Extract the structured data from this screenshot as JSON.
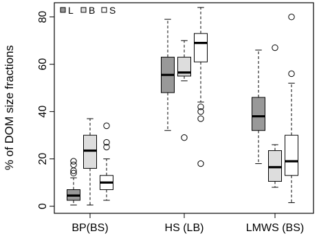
{
  "chart_data": {
    "type": "boxplot",
    "title": "",
    "xlabel": "",
    "ylabel": "% of DOM size fractions",
    "ylim": [
      -3,
      86
    ],
    "yticks": [
      0,
      20,
      40,
      60,
      80
    ],
    "categories": [
      "BP(BS)",
      "HS (LB)",
      "LMWS (BS)"
    ],
    "legend": {
      "placement": "top-left",
      "entries": [
        {
          "label": "L",
          "fill": "#999999"
        },
        {
          "label": "B",
          "fill": "#dddddd"
        },
        {
          "label": "S",
          "fill": "#ffffff"
        }
      ]
    },
    "series": [
      {
        "name": "L",
        "fill": "#999999",
        "boxes": [
          {
            "whisker_low": 0.5,
            "q1": 2.5,
            "median": 4.5,
            "q3": 7,
            "whisker_high": 12,
            "outliers": [
              14,
              15,
              17.5,
              19
            ]
          },
          {
            "whisker_low": 32,
            "q1": 48,
            "median": 55.5,
            "q3": 63,
            "whisker_high": 79,
            "outliers": []
          },
          {
            "whisker_low": 18,
            "q1": 32,
            "median": 38,
            "q3": 46,
            "whisker_high": 66,
            "outliers": []
          }
        ]
      },
      {
        "name": "B",
        "fill": "#dddddd",
        "boxes": [
          {
            "whisker_low": 0.5,
            "q1": 16,
            "median": 23.5,
            "q3": 30,
            "whisker_high": 37,
            "outliers": []
          },
          {
            "whisker_low": 53,
            "q1": 55,
            "median": 56.5,
            "q3": 63,
            "whisker_high": 70,
            "outliers": [
              29
            ]
          },
          {
            "whisker_low": 8,
            "q1": 10.5,
            "median": 16.5,
            "q3": 23.5,
            "whisker_high": 26,
            "outliers": [
              67
            ]
          }
        ]
      },
      {
        "name": "S",
        "fill": "#ffffff",
        "boxes": [
          {
            "whisker_low": 2.5,
            "q1": 7,
            "median": 10,
            "q3": 13,
            "whisker_high": 20,
            "outliers": [
              25,
              27,
              34
            ]
          },
          {
            "whisker_low": 44,
            "q1": 61,
            "median": 69,
            "q3": 73,
            "whisker_high": 84,
            "outliers": [
              18,
              37,
              40,
              42
            ]
          },
          {
            "whisker_low": 1.5,
            "q1": 13,
            "median": 19,
            "q3": 30,
            "whisker_high": 52,
            "outliers": [
              56,
              80
            ]
          }
        ]
      }
    ]
  }
}
